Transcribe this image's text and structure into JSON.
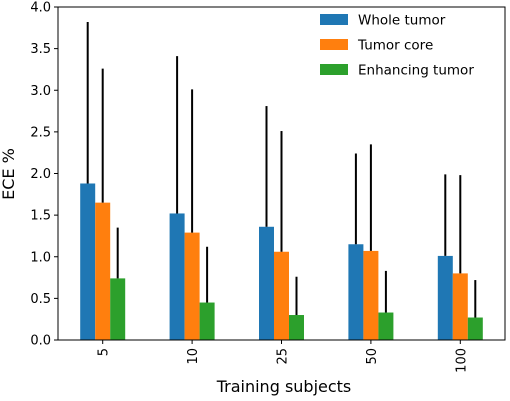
{
  "chart_data": {
    "type": "bar",
    "xlabel": "Training subjects",
    "ylabel": "ECE %",
    "categories": [
      "5",
      "10",
      "25",
      "50",
      "100"
    ],
    "ylim": [
      0,
      4.0
    ],
    "yticks": [
      "0.0",
      "0.5",
      "1.0",
      "1.5",
      "2.0",
      "2.5",
      "3.0",
      "3.5",
      "4.0"
    ],
    "legend_position": "top-right",
    "grid": false,
    "error_bars": "upper",
    "series": [
      {
        "name": "Whole tumor",
        "color": "#1f77b4",
        "values": [
          1.88,
          1.52,
          1.36,
          1.15,
          1.01
        ],
        "upper": [
          3.82,
          3.41,
          2.81,
          2.24,
          1.99
        ]
      },
      {
        "name": "Tumor core",
        "color": "#ff7f0e",
        "values": [
          1.65,
          1.29,
          1.06,
          1.07,
          0.8
        ],
        "upper": [
          3.26,
          3.01,
          2.51,
          2.35,
          1.98
        ]
      },
      {
        "name": "Enhancing tumor",
        "color": "#2ca02c",
        "values": [
          0.74,
          0.45,
          0.3,
          0.33,
          0.27
        ],
        "upper": [
          1.35,
          1.12,
          0.76,
          0.83,
          0.72
        ]
      }
    ]
  }
}
